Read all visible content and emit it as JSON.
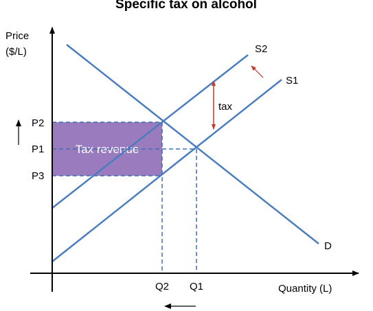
{
  "title": "Specific tax on alcohol",
  "axes": {
    "y_label_line1": "Price",
    "y_label_line2": "($/L)",
    "x_label": "Quantity (L)"
  },
  "curves": {
    "supply_original": "S1",
    "supply_after_tax": "S2",
    "demand": "D"
  },
  "price_labels": {
    "p2": "P2",
    "p1": "P1",
    "p3": "P3"
  },
  "quantity_labels": {
    "q2": "Q2",
    "q1": "Q1"
  },
  "annotations": {
    "tax": "tax",
    "tax_revenue": "Tax revenue"
  },
  "colors": {
    "curves": "#4a7cc0",
    "guides": "#3d6db5",
    "revenue_fill": "#9a7bbd",
    "tax_arrow": "#c0392b",
    "axes": "#000000"
  }
}
